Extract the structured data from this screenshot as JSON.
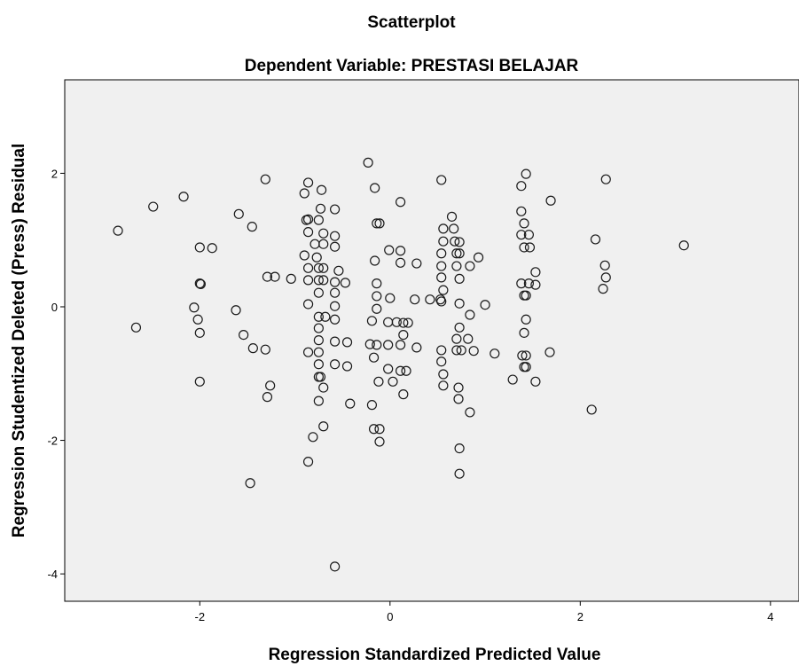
{
  "chart_data": {
    "type": "scatter",
    "title": "Scatterplot",
    "subtitle": "Dependent Variable: PRESTASI BELAJAR",
    "x_label": "Regression Standardized Predicted Value",
    "y_label": "Regression Studentized Deleted (Press) Residual",
    "xlim": [
      -3.42,
      4.3
    ],
    "ylim": [
      -4.41,
      3.4
    ],
    "xticks": [
      -2,
      0,
      2,
      4
    ],
    "yticks": [
      -4,
      -2,
      0,
      2
    ],
    "background": "#f0f0f0",
    "series": [
      {
        "color": "#1a1a1a",
        "x": [
          -2.67,
          -2.86,
          -2.49,
          -2.17,
          -2.0,
          -1.87,
          -2.0,
          -1.99,
          -2.06,
          -2.02,
          -2.0,
          -2.0,
          -1.62,
          -1.59,
          -1.45,
          -1.54,
          -1.44,
          -1.31,
          -1.31,
          -1.29,
          -1.21,
          -1.26,
          -1.29,
          -1.47,
          -1.04,
          -0.9,
          -0.86,
          -0.72,
          -0.88,
          -0.86,
          -0.75,
          -0.73,
          -0.58,
          -0.86,
          -0.7,
          -0.58,
          -0.79,
          -0.7,
          -0.58,
          -0.9,
          -0.77,
          -0.86,
          -0.75,
          -0.7,
          -0.54,
          -0.86,
          -0.75,
          -0.7,
          -0.58,
          -0.47,
          -0.75,
          -0.58,
          -0.58,
          -0.86,
          -0.75,
          -0.68,
          -0.58,
          -0.75,
          -0.86,
          -0.75,
          -0.58,
          -0.45,
          -0.75,
          -0.75,
          -0.58,
          -0.45,
          -0.75,
          -0.73,
          -0.7,
          -0.75,
          -0.42,
          -0.7,
          -0.81,
          -0.86,
          -0.58,
          -0.23,
          -0.16,
          -0.14,
          -0.11,
          0.11,
          -0.01,
          0.11,
          -0.16,
          0.11,
          0.28,
          -0.14,
          -0.14,
          -0.14,
          0.0,
          0.26,
          0.42,
          0.53,
          -0.02,
          0.07,
          0.14,
          0.19,
          -0.19,
          0.14,
          -0.21,
          -0.14,
          -0.02,
          0.11,
          0.28,
          -0.17,
          -0.02,
          0.11,
          0.17,
          0.03,
          -0.12,
          0.14,
          -0.19,
          -0.17,
          -0.11,
          -0.11,
          0.54,
          0.65,
          0.67,
          0.56,
          0.56,
          0.68,
          0.73,
          0.54,
          0.7,
          0.73,
          0.54,
          0.7,
          0.84,
          0.93,
          0.73,
          0.54,
          0.56,
          0.54,
          0.73,
          0.84,
          0.73,
          0.7,
          0.82,
          0.54,
          0.7,
          0.75,
          0.88,
          0.54,
          0.56,
          0.56,
          0.72,
          0.72,
          0.84,
          0.73,
          0.73,
          1.0,
          1.1,
          1.29,
          1.38,
          1.43,
          1.38,
          1.41,
          1.38,
          1.46,
          1.41,
          1.47,
          1.53,
          1.38,
          1.46,
          1.53,
          1.41,
          1.43,
          1.43,
          1.41,
          1.39,
          1.43,
          1.41,
          1.43,
          1.53,
          1.69,
          1.68,
          2.16,
          2.27,
          2.26,
          2.27,
          2.24,
          2.12,
          3.09
        ],
        "values": [
          -0.31,
          1.14,
          1.5,
          1.65,
          0.89,
          0.88,
          0.35,
          0.34,
          -0.01,
          -0.19,
          -0.39,
          -1.12,
          -0.05,
          1.39,
          1.2,
          -0.42,
          -0.62,
          -0.64,
          1.91,
          0.45,
          0.45,
          -1.18,
          -1.35,
          -2.64,
          0.42,
          1.7,
          1.86,
          1.75,
          1.3,
          1.31,
          1.3,
          1.47,
          1.46,
          1.12,
          1.1,
          1.06,
          0.94,
          0.94,
          0.9,
          0.77,
          0.74,
          0.58,
          0.58,
          0.58,
          0.54,
          0.4,
          0.4,
          0.4,
          0.37,
          0.36,
          0.21,
          0.21,
          0.01,
          0.04,
          -0.15,
          -0.15,
          -0.19,
          -0.32,
          -0.68,
          -0.5,
          -0.52,
          -0.53,
          -0.68,
          -0.86,
          -0.86,
          -0.89,
          -1.05,
          -1.05,
          -1.21,
          -1.41,
          -1.45,
          -1.79,
          -1.95,
          -2.32,
          -3.89,
          2.16,
          1.78,
          1.25,
          1.25,
          1.57,
          0.85,
          0.84,
          0.69,
          0.66,
          0.65,
          0.35,
          0.16,
          -0.03,
          0.13,
          0.11,
          0.11,
          0.11,
          -0.23,
          -0.23,
          -0.24,
          -0.24,
          -0.21,
          -0.42,
          -0.56,
          -0.57,
          -0.57,
          -0.57,
          -0.61,
          -0.76,
          -0.93,
          -0.96,
          -0.96,
          -1.12,
          -1.12,
          -1.31,
          -1.47,
          -1.83,
          -1.83,
          -2.02,
          1.9,
          1.35,
          1.17,
          1.17,
          0.98,
          0.98,
          0.97,
          0.8,
          0.8,
          0.8,
          0.61,
          0.61,
          0.61,
          0.74,
          0.42,
          0.44,
          0.25,
          0.08,
          0.05,
          -0.12,
          -0.31,
          -0.48,
          -0.48,
          -0.65,
          -0.65,
          -0.65,
          -0.66,
          -0.82,
          -1.01,
          -1.18,
          -1.21,
          -1.38,
          -1.58,
          -2.12,
          -2.5,
          0.03,
          -0.7,
          -1.09,
          1.81,
          1.99,
          1.43,
          1.25,
          1.08,
          1.08,
          0.89,
          0.89,
          0.52,
          0.35,
          0.35,
          0.33,
          0.17,
          0.17,
          -0.19,
          -0.39,
          -0.73,
          -0.73,
          -0.9,
          -0.9,
          -1.12,
          1.59,
          -0.68,
          1.01,
          1.91,
          0.62,
          0.44,
          0.27,
          -1.54,
          0.92
        ]
      }
    ]
  }
}
